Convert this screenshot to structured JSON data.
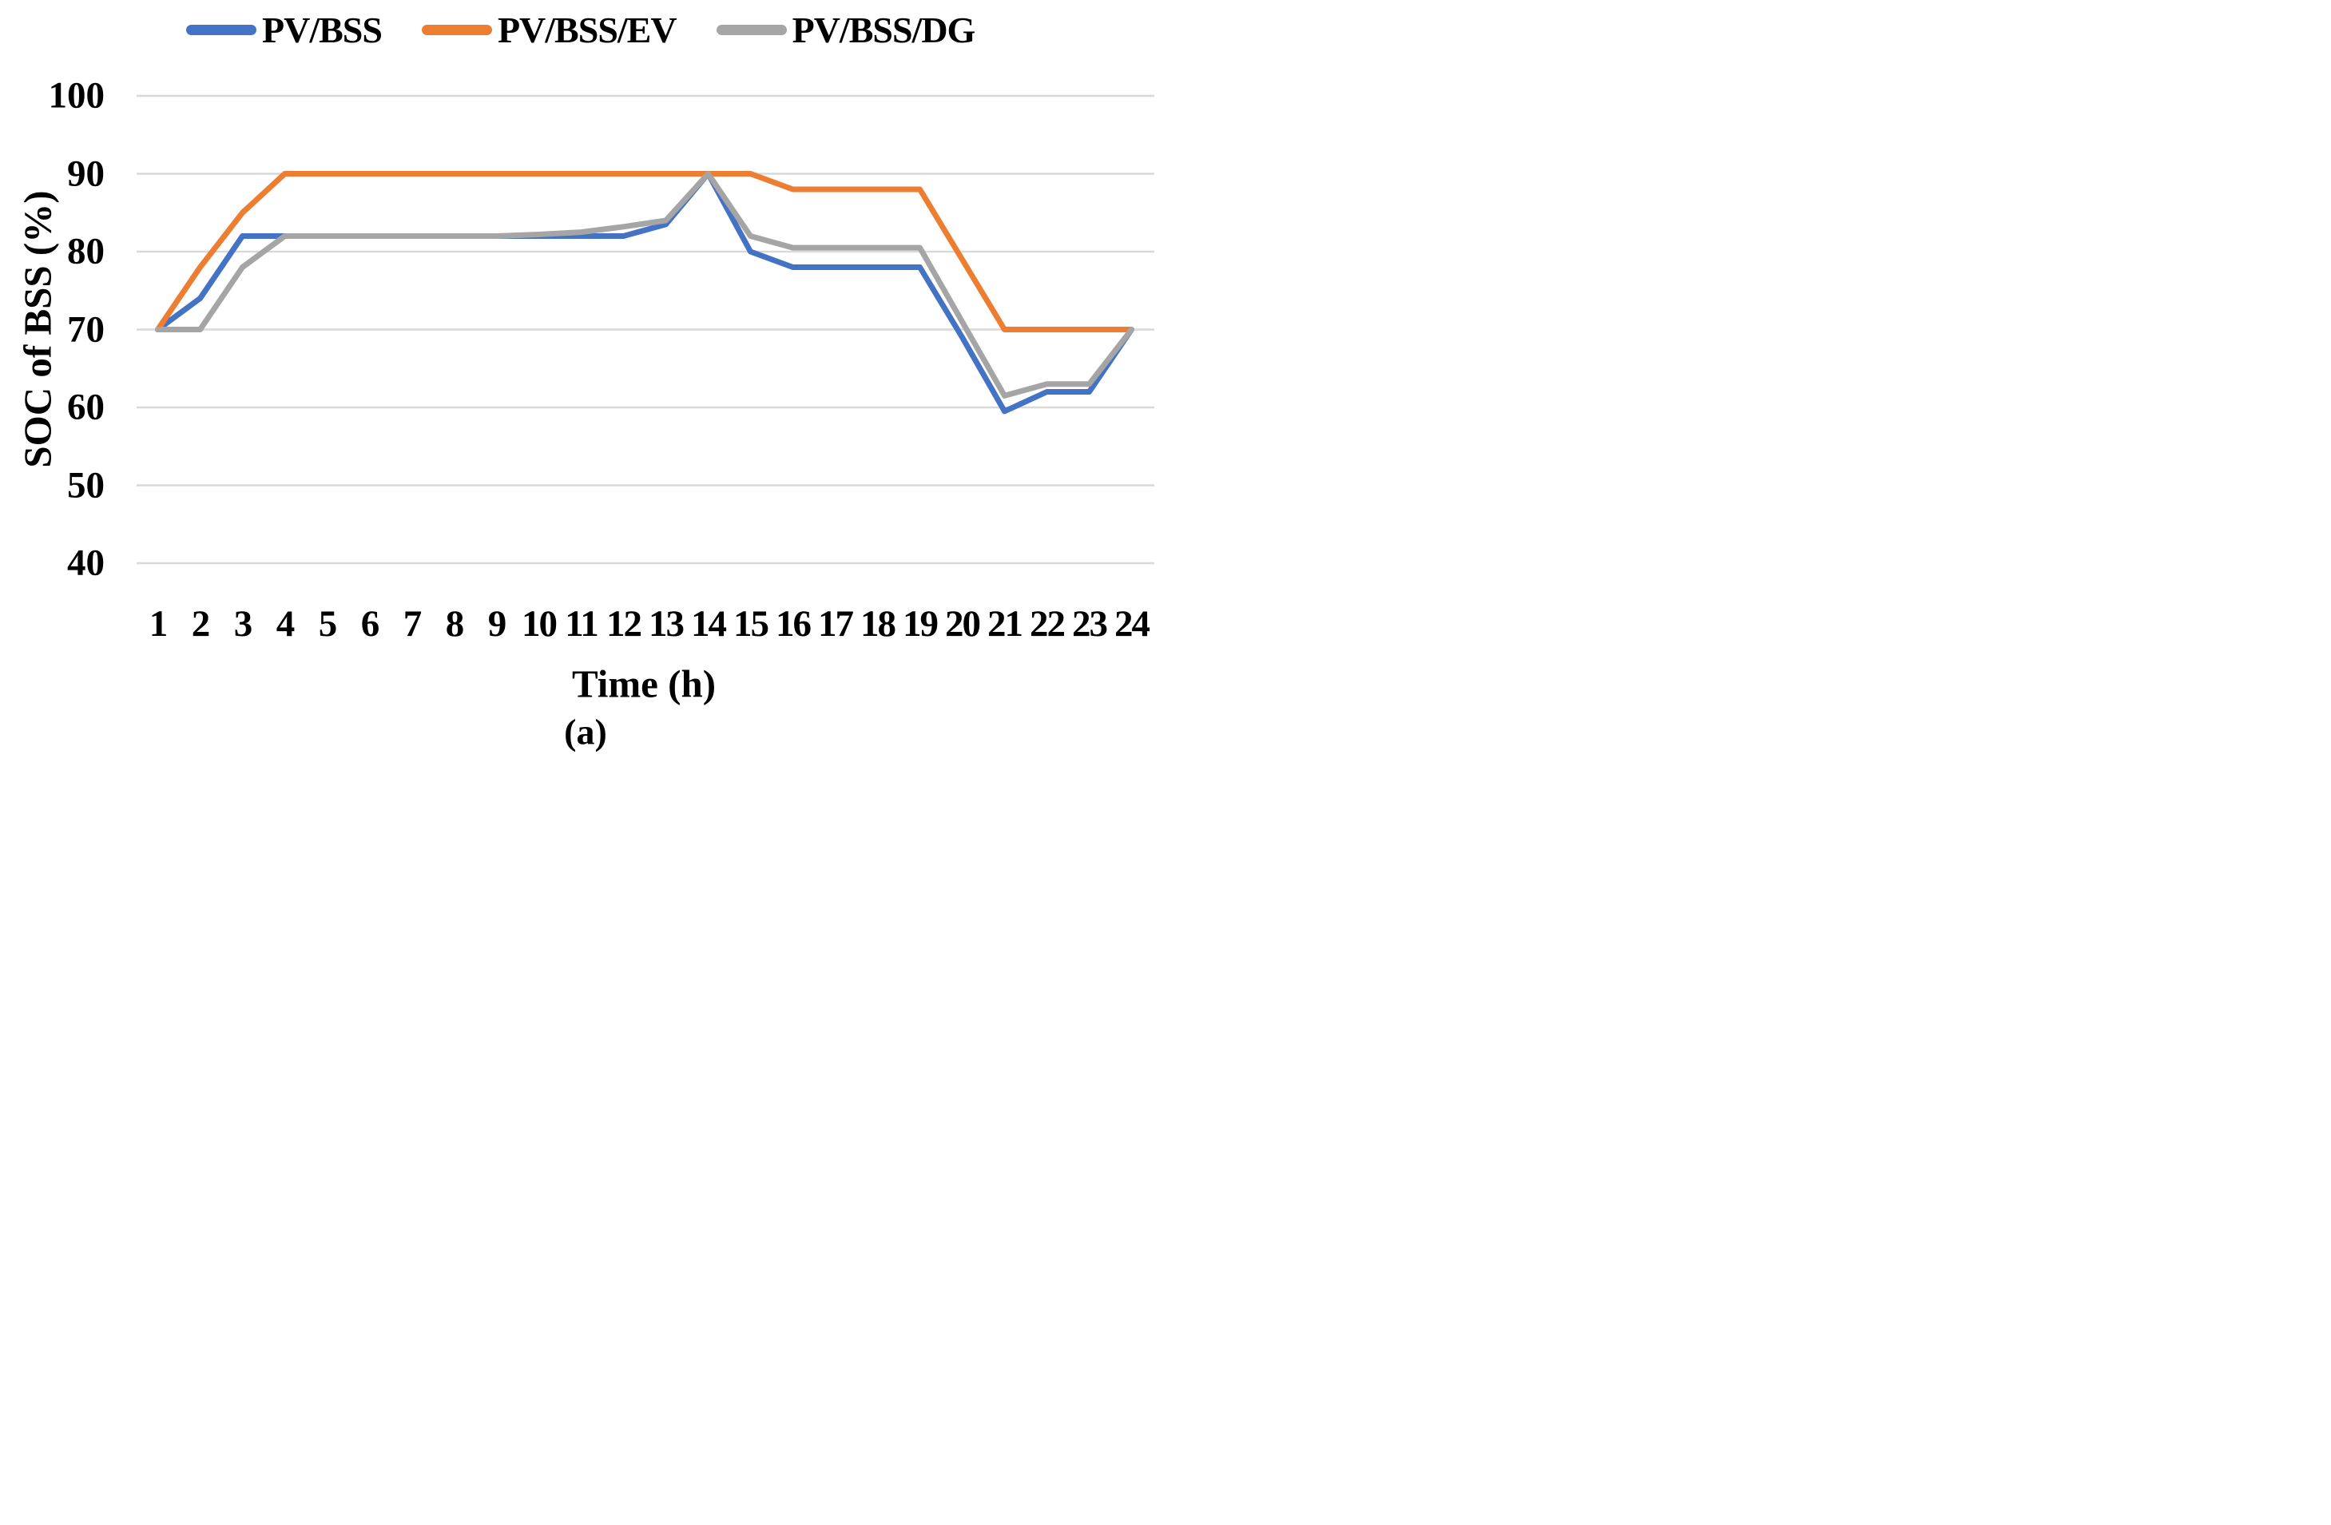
{
  "axes": {
    "y_title": "SOC of BSS (%)",
    "x_title": "Time (h)",
    "y_ticks": [
      100,
      90,
      80,
      70,
      60,
      50,
      40
    ],
    "x_ticks": [
      1,
      2,
      3,
      4,
      5,
      6,
      7,
      8,
      9,
      10,
      11,
      12,
      13,
      14,
      15,
      16,
      17,
      18,
      19,
      20,
      21,
      22,
      23,
      24
    ]
  },
  "caption": "(a)",
  "colors": {
    "gridline": "#D9D9D9",
    "text": "#000000",
    "background": "#FFFFFF"
  },
  "chart_data": {
    "type": "line",
    "title": "",
    "xlabel": "Time (h)",
    "ylabel": "SOC of BSS (%)",
    "x": [
      1,
      2,
      3,
      4,
      5,
      6,
      7,
      8,
      9,
      10,
      11,
      12,
      13,
      14,
      15,
      16,
      17,
      18,
      19,
      20,
      21,
      22,
      23,
      24
    ],
    "ylim": [
      40,
      100
    ],
    "xlim": [
      1,
      24
    ],
    "grid": "horizontal",
    "legend_position": "top",
    "series": [
      {
        "name": "PV/BSS",
        "color": "#4472C4",
        "values": [
          70,
          74,
          82,
          82,
          82,
          82,
          82,
          82,
          82,
          82,
          82,
          82,
          83.5,
          90,
          80,
          78,
          78,
          78,
          78,
          69,
          59.5,
          62,
          62,
          70
        ]
      },
      {
        "name": "PV/BSS/EV",
        "color": "#ED7D31",
        "values": [
          70,
          78,
          85,
          90,
          90,
          90,
          90,
          90,
          90,
          90,
          90,
          90,
          90,
          90,
          90,
          88,
          88,
          88,
          88,
          79,
          70,
          70,
          70,
          70
        ]
      },
      {
        "name": "PV/BSS/DG",
        "color": "#A5A5A5",
        "values": [
          70,
          70,
          78,
          82,
          82,
          82,
          82,
          82,
          82,
          82.2,
          82.5,
          83.2,
          84,
          90,
          82,
          80.5,
          80.5,
          80.5,
          80.5,
          71,
          61.5,
          63,
          63,
          70
        ]
      }
    ]
  }
}
